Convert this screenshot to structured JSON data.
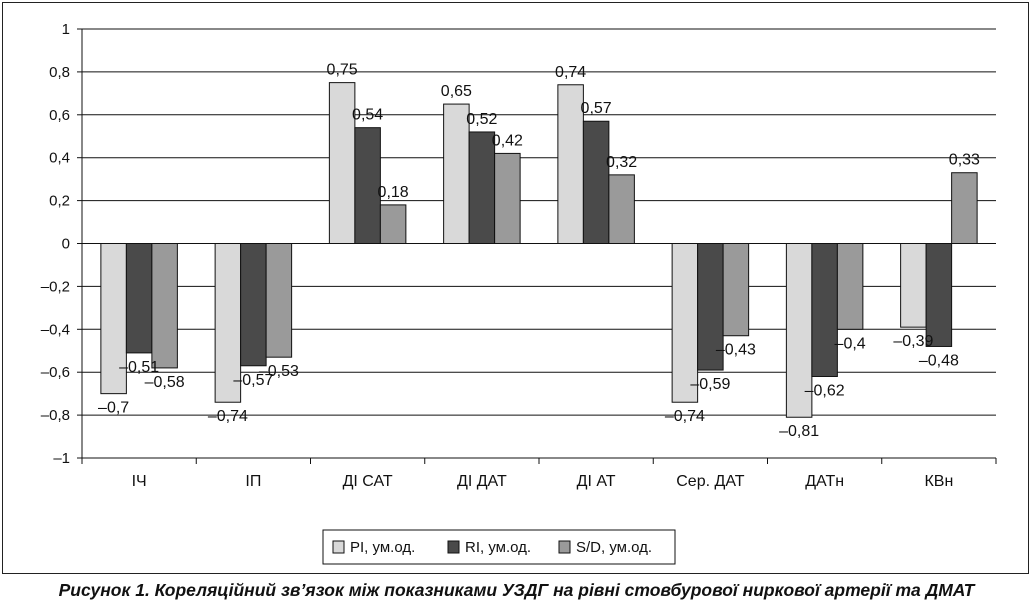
{
  "caption": "Рисунок 1. Кореляційний зв’язок між показниками УЗДГ на рівні стовбурової ниркової артерії та ДМАТ",
  "chart_data": {
    "type": "bar",
    "categories": [
      "ІЧ",
      "ІП",
      "ДІ  САТ",
      "ДІ  ДАТ",
      "ДІ АТ",
      "Сер. ДАТ",
      "ДАТн",
      "КВн"
    ],
    "series": [
      {
        "name": "PI, ум.од.",
        "color": "#d9d9d9",
        "values": [
          -0.7,
          -0.74,
          0.75,
          0.65,
          0.74,
          -0.74,
          -0.81,
          -0.39
        ]
      },
      {
        "name": "RI, ум.од.",
        "color": "#4a4a4a",
        "values": [
          -0.51,
          -0.57,
          0.54,
          0.52,
          0.57,
          -0.59,
          -0.62,
          -0.48
        ]
      },
      {
        "name": "S/D, ум.од.",
        "color": "#9a9a9a",
        "values": [
          -0.58,
          -0.53,
          0.18,
          0.42,
          0.32,
          -0.43,
          -0.4,
          0.33
        ]
      }
    ],
    "ylim": [
      -1,
      1
    ],
    "yticks": [
      1,
      0.8,
      0.6,
      0.4,
      0.2,
      0,
      -0.2,
      -0.4,
      -0.6,
      -0.8,
      -1
    ],
    "ytick_labels": [
      "1",
      "0,8",
      "0,6",
      "0,4",
      "0,2",
      "0",
      "–0,2",
      "–0,4",
      "–0,6",
      "–0,8",
      "–1"
    ],
    "data_labels": [
      [
        "–0,7",
        "–0,74",
        "0,75",
        "0,65",
        "0,74",
        "–0,74",
        "–0,81",
        "–0,39"
      ],
      [
        "–0,51",
        "–0,57",
        "0,54",
        "0,52",
        "0,57",
        "–0,59",
        "–0,62",
        "–0,48"
      ],
      [
        "–0,58",
        "–0,53",
        "0,18",
        "0,42",
        "0,32",
        "–0,43",
        "–0,4",
        "0,33"
      ]
    ],
    "grid": true,
    "legend_position": "bottom-center"
  }
}
